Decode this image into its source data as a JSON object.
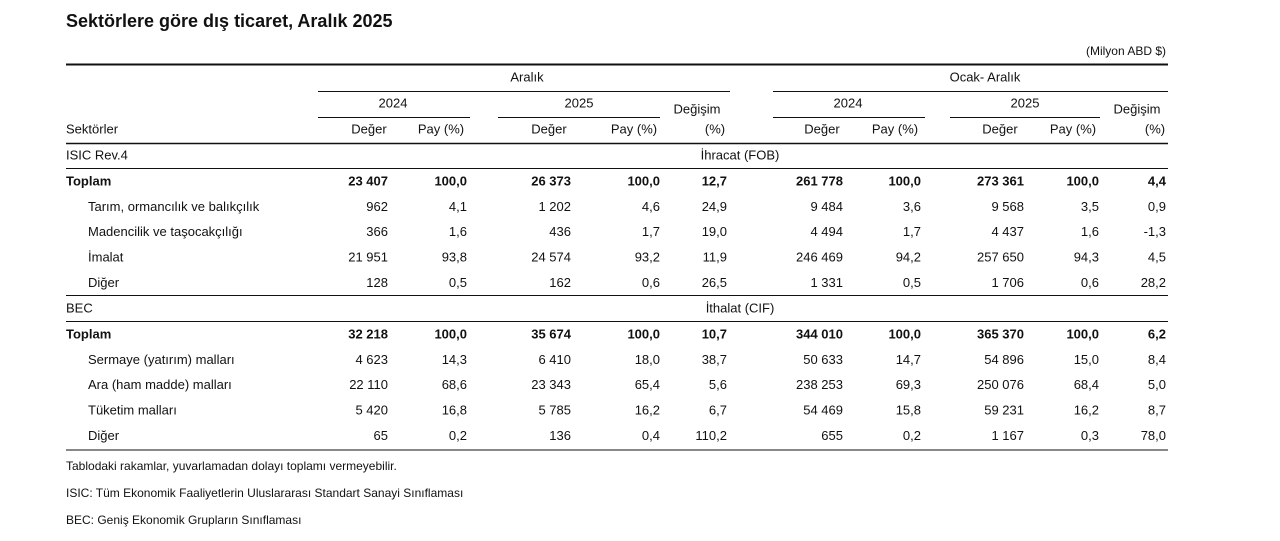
{
  "title": "Sektörlere göre dış ticaret, Aralık 2025",
  "unit": "(Milyon ABD $)",
  "header": {
    "groups": [
      "Aralık",
      "Ocak- Aralık"
    ],
    "years": [
      "2024",
      "2025",
      "2024",
      "2025"
    ],
    "change": [
      "Değişim",
      "Değişim"
    ],
    "row_label": "Sektörler",
    "columns": [
      "Değer",
      "Pay (%)",
      "Değer",
      "Pay (%)",
      "(%)",
      "Değer",
      "Pay (%)",
      "Değer",
      "Pay (%)",
      "(%)"
    ]
  },
  "sections": [
    {
      "classification": "ISIC  Rev.4",
      "flow": "İhracat (FOB)",
      "rows": [
        {
          "label": "Toplam",
          "values": [
            "23 407",
            "100,0",
            "26 373",
            "100,0",
            "12,7",
            "261 778",
            "100,0",
            "273 361",
            "100,0",
            "4,4"
          ]
        },
        {
          "label": "Tarım, ormancılık ve balıkçılık",
          "values": [
            "962",
            "4,1",
            "1 202",
            "4,6",
            "24,9",
            "9 484",
            "3,6",
            "9 568",
            "3,5",
            "0,9"
          ]
        },
        {
          "label": "Madencilik ve taşocakçılığı",
          "values": [
            "366",
            "1,6",
            "436",
            "1,7",
            "19,0",
            "4 494",
            "1,7",
            "4 437",
            "1,6",
            "-1,3"
          ]
        },
        {
          "label": "İmalat",
          "values": [
            "21 951",
            "93,8",
            "24 574",
            "93,2",
            "11,9",
            "246 469",
            "94,2",
            "257 650",
            "94,3",
            "4,5"
          ]
        },
        {
          "label": "Diğer",
          "values": [
            "128",
            "0,5",
            "162",
            "0,6",
            "26,5",
            "1 331",
            "0,5",
            "1 706",
            "0,6",
            "28,2"
          ]
        }
      ]
    },
    {
      "classification": "BEC",
      "flow": "İthalat (CIF)",
      "rows": [
        {
          "label": "Toplam",
          "values": [
            "32 218",
            "100,0",
            "35 674",
            "100,0",
            "10,7",
            "344 010",
            "100,0",
            "365 370",
            "100,0",
            "6,2"
          ]
        },
        {
          "label": "Sermaye (yatırım) malları",
          "values": [
            "4 623",
            "14,3",
            "6 410",
            "18,0",
            "38,7",
            "50 633",
            "14,7",
            "54 896",
            "15,0",
            "8,4"
          ]
        },
        {
          "label": "Ara (ham madde) malları",
          "values": [
            "22 110",
            "68,6",
            "23 343",
            "65,4",
            "5,6",
            "238 253",
            "69,3",
            "250 076",
            "68,4",
            "5,0"
          ]
        },
        {
          "label": "Tüketim malları",
          "values": [
            "5 420",
            "16,8",
            "5 785",
            "16,2",
            "6,7",
            "54 469",
            "15,8",
            "59 231",
            "16,2",
            "8,7"
          ]
        },
        {
          "label": "Diğer",
          "values": [
            "65",
            "0,2",
            "136",
            "0,4",
            "110,2",
            "655",
            "0,2",
            "1 167",
            "0,3",
            "78,0"
          ]
        }
      ]
    }
  ],
  "notes": [
    "Tablodaki rakamlar, yuvarlamadan dolayı toplamı vermeyebilir.",
    "ISIC: Tüm Ekonomik Faaliyetlerin Uluslararası Standart Sanayi Sınıflaması",
    "BEC: Geniş Ekonomik Grupların Sınıflaması"
  ]
}
